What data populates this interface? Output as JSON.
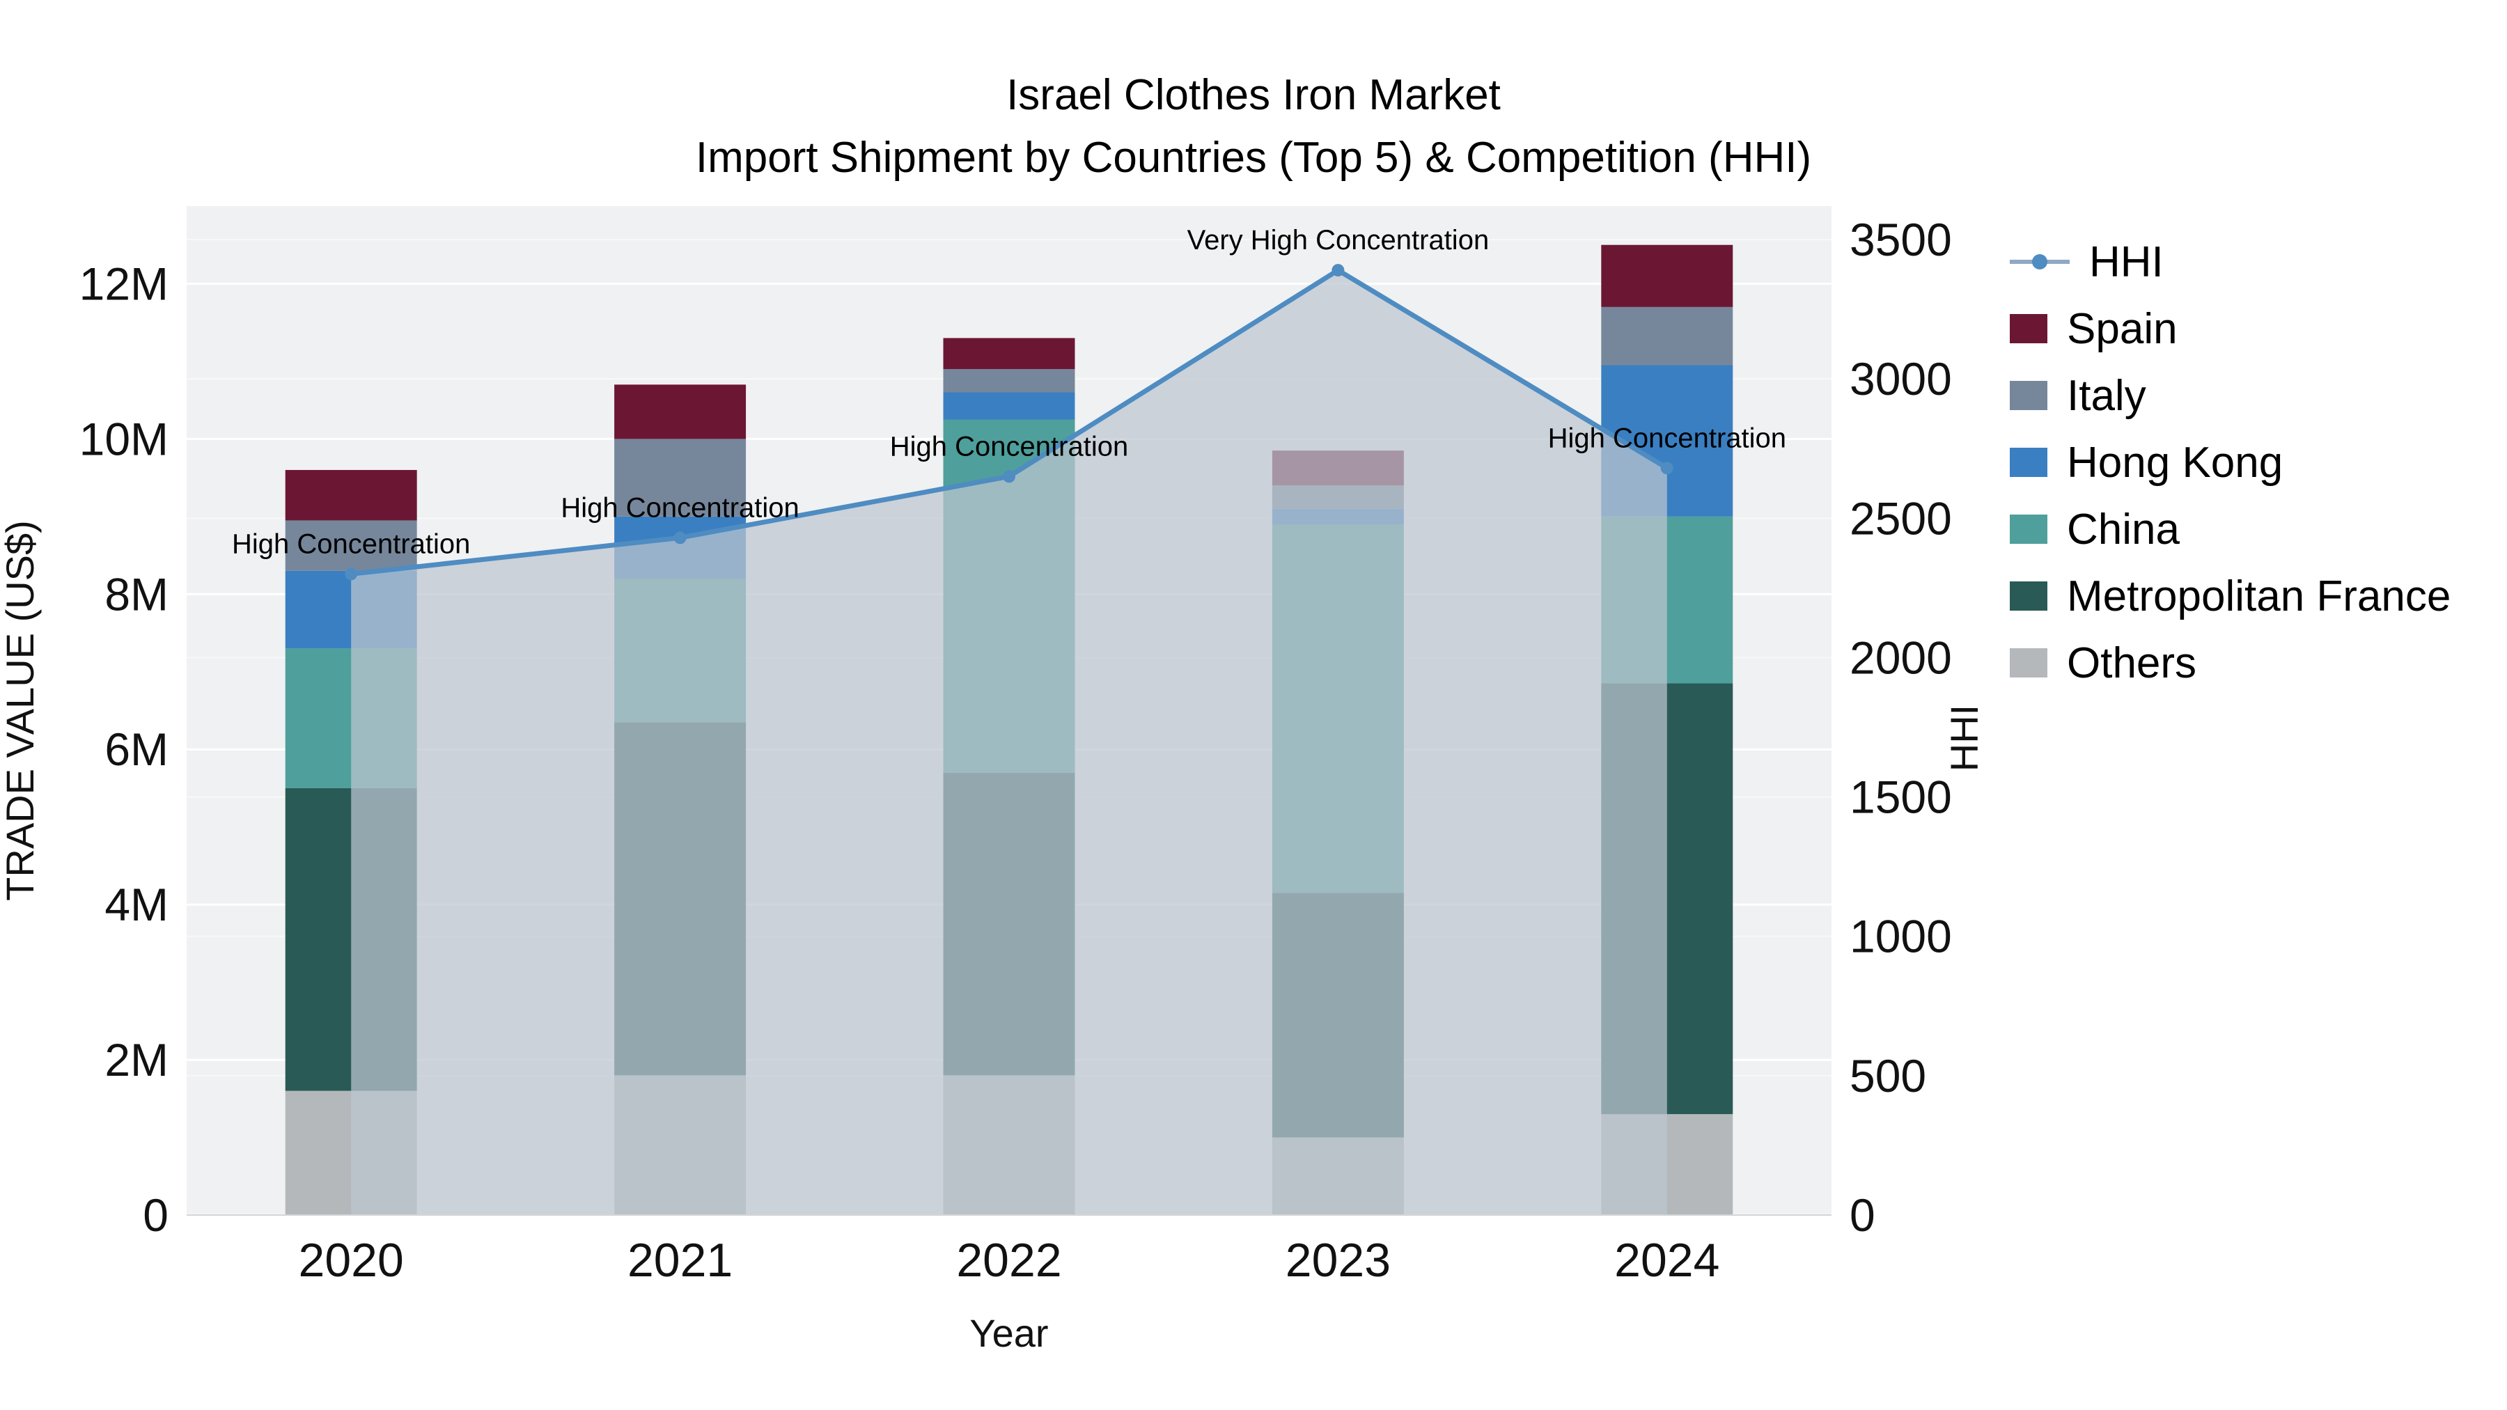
{
  "title": {
    "line1": "Israel Clothes Iron Market",
    "line2": "Import Shipment by Countries (Top 5) & Competition (HHI)"
  },
  "chart_data": {
    "type": "bar",
    "stacked": true,
    "x_title": "Year",
    "categories": [
      "2020",
      "2021",
      "2022",
      "2023",
      "2024"
    ],
    "bar_values_unit": "million US$",
    "bar_series": [
      {
        "name": "Others",
        "color": "#b4b8bb",
        "values": [
          1.6,
          1.8,
          1.8,
          1.0,
          1.3
        ]
      },
      {
        "name": "Metropolitan France",
        "color": "#2a5a56",
        "values": [
          3.9,
          4.55,
          3.9,
          3.15,
          5.55
        ]
      },
      {
        "name": "China",
        "color": "#4f9f9c",
        "values": [
          1.8,
          1.85,
          4.55,
          4.75,
          2.15
        ]
      },
      {
        "name": "Hong Kong",
        "color": "#3a7fc1",
        "values": [
          1.0,
          0.8,
          0.35,
          0.2,
          1.95
        ]
      },
      {
        "name": "Italy",
        "color": "#76879c",
        "values": [
          0.65,
          1.0,
          0.3,
          0.3,
          0.75
        ]
      },
      {
        "name": "Spain",
        "color": "#6b1734",
        "values": [
          0.65,
          0.7,
          0.4,
          0.45,
          0.8
        ]
      }
    ],
    "line_series": {
      "name": "HHI",
      "color": "#4e8cc2",
      "legend_line_color": "#8fa9c4",
      "area_fill": "#bdc6d0",
      "area_opacity": 0.72,
      "values": [
        2300,
        2430,
        2650,
        3390,
        2680
      ]
    },
    "annotations": [
      "High Concentration",
      "High Concentration",
      "High Concentration",
      "Very High Concentration",
      "High Concentration"
    ],
    "y_left": {
      "title": "TRADE VALUE (US$)",
      "axis_max": 13,
      "ticks": [
        {
          "value": 0,
          "label": "0"
        },
        {
          "value": 2,
          "label": "2M"
        },
        {
          "value": 4,
          "label": "4M"
        },
        {
          "value": 6,
          "label": "6M"
        },
        {
          "value": 8,
          "label": "8M"
        },
        {
          "value": 10,
          "label": "10M"
        },
        {
          "value": 12,
          "label": "12M"
        }
      ]
    },
    "y_right": {
      "title": "HHI",
      "axis_max": 3620,
      "ticks": [
        {
          "value": 0,
          "label": "0"
        },
        {
          "value": 500,
          "label": "500"
        },
        {
          "value": 1000,
          "label": "1000"
        },
        {
          "value": 1500,
          "label": "1500"
        },
        {
          "value": 2000,
          "label": "2000"
        },
        {
          "value": 2500,
          "label": "2500"
        },
        {
          "value": 3000,
          "label": "3000"
        },
        {
          "value": 3500,
          "label": "3500"
        }
      ]
    },
    "legend": [
      {
        "label": "HHI",
        "glyph": "line",
        "color": "#4e8cc2"
      },
      {
        "label": "Spain",
        "glyph": "swatch",
        "color": "#6b1734"
      },
      {
        "label": "Italy",
        "glyph": "swatch",
        "color": "#76879c"
      },
      {
        "label": "Hong Kong",
        "glyph": "swatch",
        "color": "#3a7fc1"
      },
      {
        "label": "China",
        "glyph": "swatch",
        "color": "#4f9f9c"
      },
      {
        "label": "Metropolitan France",
        "glyph": "swatch",
        "color": "#2a5a56"
      },
      {
        "label": "Others",
        "glyph": "swatch",
        "color": "#b4b8bb"
      }
    ],
    "plot_bg": "#f0f1f2",
    "grid": true
  }
}
